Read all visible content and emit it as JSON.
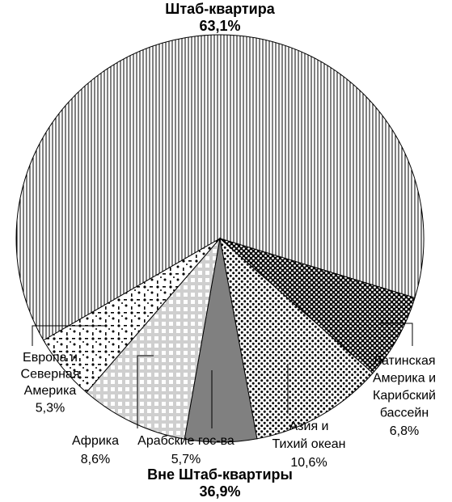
{
  "chart_data": {
    "type": "pie",
    "categories": [
      [
        "Штаб-квартира"
      ],
      [
        "Латинская",
        "Америка и",
        "Карибский",
        "бассейн"
      ],
      [
        "Азия и",
        "Тихий океан"
      ],
      [
        "Арабские гос-ва"
      ],
      [
        "Африка"
      ],
      [
        "Европа и",
        "Северная",
        "Америка"
      ]
    ],
    "values": [
      63.1,
      6.8,
      10.6,
      5.7,
      8.6,
      5.3
    ],
    "value_labels": [
      "63,1%",
      "6,8%",
      "10,6%",
      "5,7%",
      "8,6%",
      "5,3%"
    ],
    "patterns": [
      "vertical-lines",
      "dark-dots",
      "dots",
      "solid-gray",
      "checker",
      "speckle"
    ],
    "annotation": [
      "Вне Штаб-квартиры",
      "36,9%"
    ]
  }
}
